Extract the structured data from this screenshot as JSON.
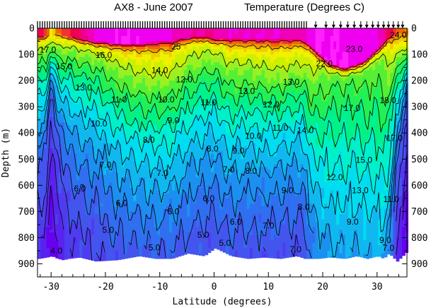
{
  "chart_data": {
    "type": "heatmap",
    "title_left": "AX8 - June 2007",
    "title_right": "Temperature (Degrees C)",
    "xlabel": "Latitude (degrees)",
    "ylabel": "Depth (m)",
    "xlim": [
      -32.5,
      35.5
    ],
    "ylim": [
      0,
      950
    ],
    "xticks": [
      -30,
      -20,
      -10,
      0,
      10,
      20,
      30
    ],
    "yticks": [
      0,
      100,
      200,
      300,
      400,
      500,
      600,
      700,
      800,
      900
    ],
    "levels": [
      4,
      5,
      6,
      7,
      8,
      9,
      10,
      11,
      12,
      13,
      14,
      15,
      16,
      17,
      18,
      19,
      20,
      21,
      22,
      23,
      24,
      25,
      26,
      27
    ],
    "colors": [
      "#6600ee",
      "#5a22ee",
      "#4f3cf0",
      "#4455ee",
      "#2f6ff0",
      "#1c90f0",
      "#10b8f0",
      "#00ddf0",
      "#00f0cc",
      "#00f08a",
      "#22f055",
      "#55f033",
      "#99f022",
      "#ccf000",
      "#f0f000",
      "#f0cc00",
      "#f09900",
      "#f06600",
      "#f03333",
      "#f0004f",
      "#f0007f",
      "#f000b8",
      "#f000f0",
      "#ff22ff"
    ],
    "profile_x": [
      -32.5,
      -31,
      -30,
      -29,
      -28,
      -27,
      -25,
      -22,
      -18,
      -14,
      -11,
      -8,
      -5,
      -2,
      0,
      3,
      6,
      9,
      12,
      15,
      16.5,
      17.5,
      19,
      21,
      24,
      26,
      28,
      30,
      31,
      32,
      33.5,
      35.5
    ],
    "profile_sst": [
      23.5,
      23.0,
      18.5,
      21.0,
      22.0,
      22.5,
      24.0,
      26.0,
      27.0,
      27.0,
      26.5,
      26.0,
      25.0,
      25.0,
      25.0,
      26.0,
      26.0,
      26.0,
      26.0,
      25.5,
      25.5,
      26.5,
      27.0,
      27.0,
      27.0,
      26.5,
      26.5,
      26.0,
      25.5,
      24.0,
      22.0,
      21.0
    ],
    "profile_dtop": [
      30,
      30,
      20,
      20,
      25,
      30,
      40,
      50,
      55,
      55,
      50,
      45,
      35,
      30,
      40,
      40,
      40,
      40,
      40,
      40,
      45,
      60,
      90,
      130,
      150,
      140,
      120,
      80,
      60,
      40,
      20,
      15
    ],
    "profile_gap": [
      6.0,
      5.0,
      1.0,
      3.0,
      4.0,
      5.5,
      7.0,
      9.0,
      8.5,
      7.5,
      6.5,
      6.0,
      6.5,
      7.0,
      7.5,
      7.0,
      7.0,
      6.5,
      6.0,
      6.0,
      6.5,
      7.5,
      9.5,
      11.0,
      11.5,
      11.0,
      10.5,
      10.0,
      8.5,
      6.0,
      2.5,
      1.0
    ],
    "profile_decay": [
      130,
      110,
      60,
      90,
      110,
      130,
      150,
      160,
      170,
      175,
      175,
      175,
      175,
      170,
      165,
      170,
      165,
      160,
      155,
      150,
      155,
      190,
      240,
      300,
      330,
      330,
      340,
      360,
      340,
      270,
      120,
      60
    ],
    "bottom_depth": [
      880,
      875,
      870,
      880,
      885,
      880,
      875,
      890,
      885,
      870,
      880,
      880,
      860,
      870,
      840,
      870,
      880,
      875,
      880,
      870,
      880,
      880,
      880,
      875,
      880,
      870,
      880,
      870,
      880,
      860,
      890,
      850
    ],
    "contour_labels": [
      {
        "text": "17.0",
        "x": -30.6,
        "y": 82
      },
      {
        "text": "16.0",
        "x": -20.3,
        "y": 103
      },
      {
        "text": "15.0",
        "x": -27.6,
        "y": 146
      },
      {
        "text": "13.0",
        "x": -24.0,
        "y": 227
      },
      {
        "text": "11.0",
        "x": -17.5,
        "y": 273
      },
      {
        "text": "10.0",
        "x": -8.8,
        "y": 273
      },
      {
        "text": "9.0",
        "x": -7.5,
        "y": 352
      },
      {
        "text": "10.0",
        "x": -21.2,
        "y": 365
      },
      {
        "text": "8.0",
        "x": -12.0,
        "y": 427
      },
      {
        "text": "7.0",
        "x": -20.0,
        "y": 522
      },
      {
        "text": "6.0",
        "x": -24.7,
        "y": 613
      },
      {
        "text": "6.0",
        "x": -17.0,
        "y": 668
      },
      {
        "text": "5.0",
        "x": -19.5,
        "y": 770
      },
      {
        "text": "5.0",
        "x": -11.0,
        "y": 838
      },
      {
        "text": "4.0",
        "x": -29.0,
        "y": 850
      },
      {
        "text": "7.0",
        "x": -9.5,
        "y": 553
      },
      {
        "text": "6.0",
        "x": -7.5,
        "y": 700
      },
      {
        "text": "11.0",
        "x": -1.0,
        "y": 283
      },
      {
        "text": "12.0",
        "x": -5.5,
        "y": 195
      },
      {
        "text": "13.0",
        "x": 6.0,
        "y": 240
      },
      {
        "text": "12.0",
        "x": 10.5,
        "y": 292
      },
      {
        "text": "11.0",
        "x": 12.2,
        "y": 380
      },
      {
        "text": "10.0",
        "x": 7.2,
        "y": 412
      },
      {
        "text": "9.0",
        "x": 4.5,
        "y": 468
      },
      {
        "text": "8.0",
        "x": 6.8,
        "y": 545
      },
      {
        "text": "7.0",
        "x": 2.7,
        "y": 540
      },
      {
        "text": "8.0",
        "x": -0.3,
        "y": 460
      },
      {
        "text": "6.0",
        "x": -1.0,
        "y": 650
      },
      {
        "text": "6.0",
        "x": 4.0,
        "y": 740
      },
      {
        "text": "5.0",
        "x": 2.0,
        "y": 820
      },
      {
        "text": "5.0",
        "x": -2.0,
        "y": 790
      },
      {
        "text": "7.0",
        "x": 10.0,
        "y": 755
      },
      {
        "text": "7.0",
        "x": 15.0,
        "y": 845
      },
      {
        "text": "8.0",
        "x": 16.5,
        "y": 683
      },
      {
        "text": "9.0",
        "x": 13.5,
        "y": 620
      },
      {
        "text": "13.0",
        "x": 14.2,
        "y": 205
      },
      {
        "text": "14.0",
        "x": 16.8,
        "y": 390
      },
      {
        "text": "12.0",
        "x": 22.2,
        "y": 570
      },
      {
        "text": "13.0",
        "x": 26.9,
        "y": 620
      },
      {
        "text": "15.0",
        "x": 27.6,
        "y": 503
      },
      {
        "text": "17.0",
        "x": 25.4,
        "y": 305
      },
      {
        "text": "18.0",
        "x": 32.0,
        "y": 275
      },
      {
        "text": "17.0",
        "x": 33.2,
        "y": 420
      },
      {
        "text": "22.0",
        "x": 20.3,
        "y": 135
      },
      {
        "text": "23.0",
        "x": 25.8,
        "y": 80
      },
      {
        "text": "24.0",
        "x": 33.9,
        "y": 25
      },
      {
        "text": "11.0",
        "x": 32.6,
        "y": 653
      },
      {
        "text": "9.0",
        "x": 31.5,
        "y": 810
      },
      {
        "text": "9.0",
        "x": 25.5,
        "y": 740
      },
      {
        "text": "7.0",
        "x": 32.1,
        "y": 840
      },
      {
        "text": "25",
        "x": -7.0,
        "y": 70
      },
      {
        "text": "14.0",
        "x": -10.0,
        "y": 160
      }
    ],
    "station_ticks_dense": {
      "from": -32.5,
      "to": 17.0,
      "step": 0.45
    },
    "station_arrows": [
      18.7,
      20.6,
      22.0,
      23.3,
      24.6,
      25.8,
      27.0,
      28.1,
      29.2,
      30.2,
      31.2,
      32.1,
      33.0,
      33.9,
      34.7
    ]
  }
}
